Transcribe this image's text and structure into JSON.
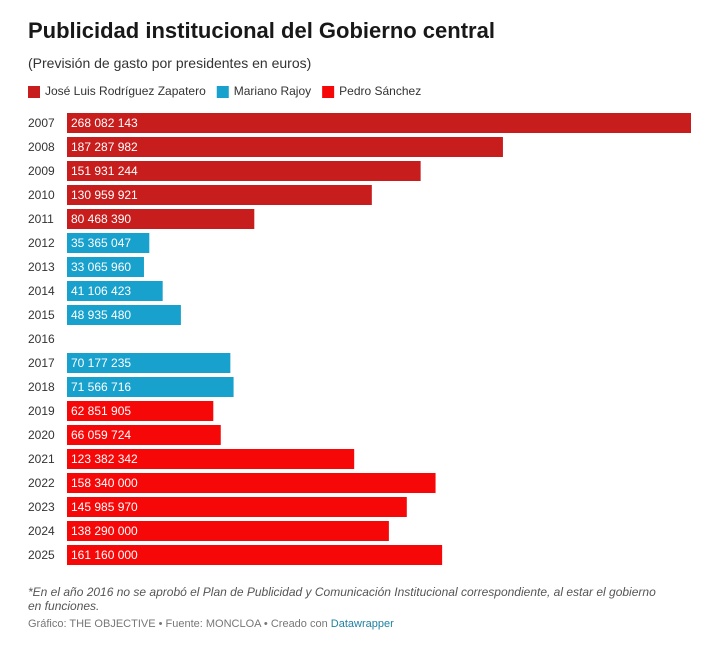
{
  "chart_data": {
    "type": "bar",
    "orientation": "horizontal",
    "title": "Publicidad institucional del Gobierno central",
    "subtitle": "(Previsión de gasto por presidentes en euros)",
    "categories": [
      "2007",
      "2008",
      "2009",
      "2010",
      "2011",
      "2012",
      "2013",
      "2014",
      "2015",
      "2016",
      "2017",
      "2018",
      "2019",
      "2020",
      "2021",
      "2022",
      "2023",
      "2024",
      "2025"
    ],
    "series": [
      {
        "name": "José Luis Rodríguez Zapatero",
        "color": "#c71e1d",
        "values": [
          268082143,
          187287982,
          151931244,
          130959921,
          80468390,
          null,
          null,
          null,
          null,
          null,
          null,
          null,
          null,
          null,
          null,
          null,
          null,
          null,
          null
        ],
        "value_labels": [
          "268 082 143",
          "187 287 982",
          "151 931 244",
          "130 959 921",
          "80 468 390",
          null,
          null,
          null,
          null,
          null,
          null,
          null,
          null,
          null,
          null,
          null,
          null,
          null,
          null
        ]
      },
      {
        "name": "Mariano Rajoy",
        "color": "#18a1cd",
        "values": [
          null,
          null,
          null,
          null,
          null,
          35365047,
          33065960,
          41106423,
          48935480,
          null,
          70177235,
          71566716,
          null,
          null,
          null,
          null,
          null,
          null,
          null
        ],
        "value_labels": [
          null,
          null,
          null,
          null,
          null,
          "35 365 047",
          "33 065 960",
          "41 106 423",
          "48 935 480",
          null,
          "70 177 235",
          "71 566 716",
          null,
          null,
          null,
          null,
          null,
          null,
          null
        ]
      },
      {
        "name": "Pedro Sánchez",
        "color": "#f70808",
        "values": [
          null,
          null,
          null,
          null,
          null,
          null,
          null,
          null,
          null,
          null,
          null,
          null,
          62851905,
          66059724,
          123382342,
          158340000,
          145985970,
          138290000,
          161160000
        ],
        "value_labels": [
          null,
          null,
          null,
          null,
          null,
          null,
          null,
          null,
          null,
          null,
          null,
          null,
          "62 851 905",
          "66 059 724",
          "123 382 342",
          "158 340 000",
          "145 985 970",
          "138 290 000",
          "161 160 000"
        ]
      }
    ],
    "note": "*En el año 2016 no se aprobó el Plan de Publicidad y Comunicación Institucional correspondiente, al estar el gobierno en funciones.",
    "source": "Gráfico: THE OBJECTIVE • Fuente: MONCLOA  • Creado con",
    "credit": "Datawrapper"
  }
}
